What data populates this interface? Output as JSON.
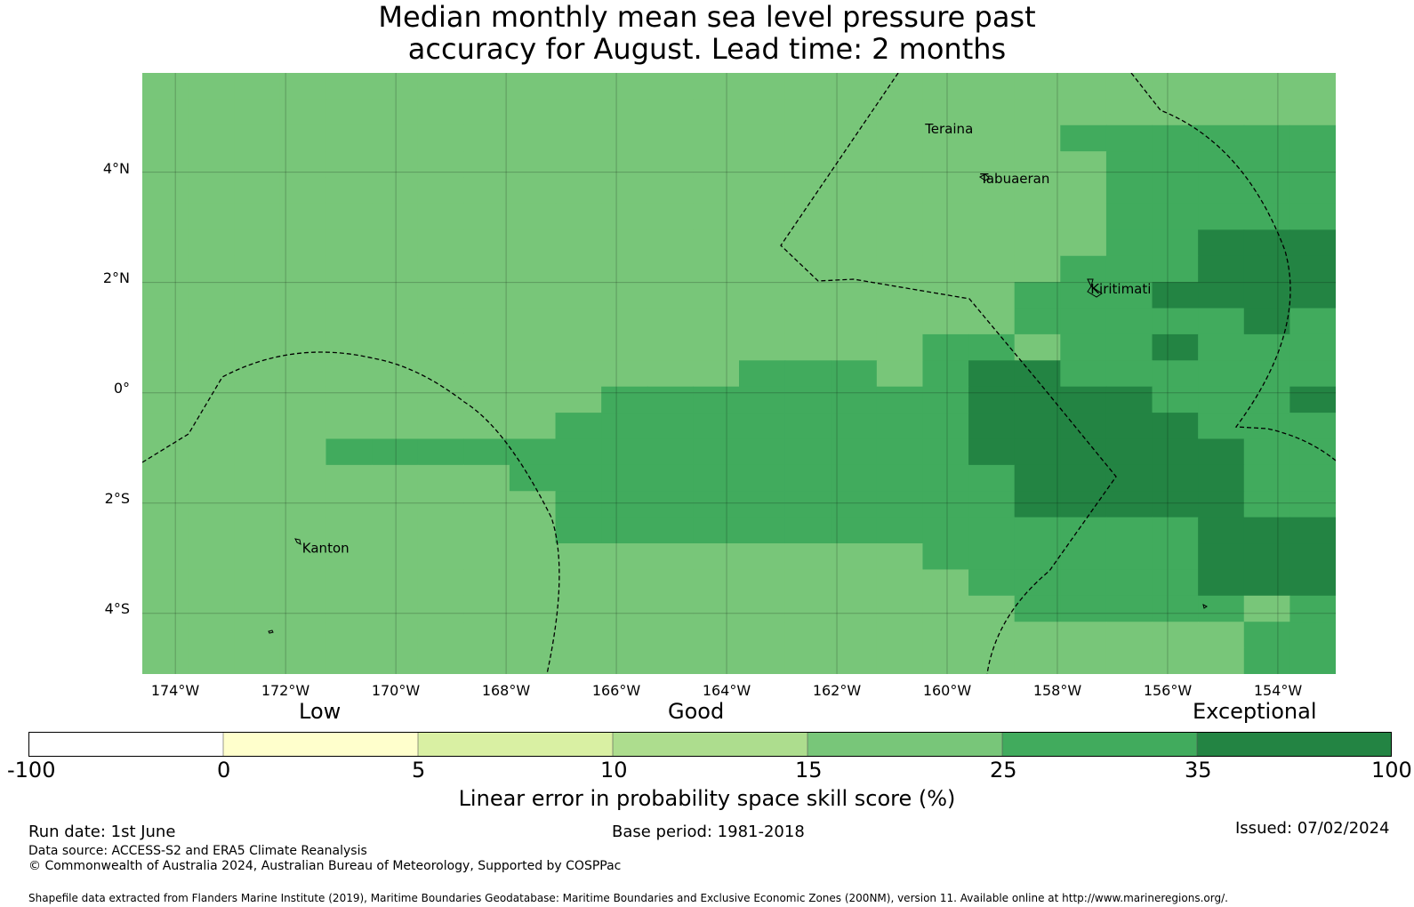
{
  "title": {
    "line1": "Median monthly mean sea level pressure past",
    "line2": "accuracy for August. Lead time: 2 months"
  },
  "map": {
    "lon_range": [
      -174.6,
      -152.95
    ],
    "lat_range": [
      -5.1,
      5.8
    ],
    "grid_step_deg": 0.833,
    "y_ticks": [
      "4°N",
      "2°N",
      "0°",
      "2°S",
      "4°S"
    ],
    "x_ticks": [
      "174°W",
      "172°W",
      "170°W",
      "168°W",
      "166°W",
      "164°W",
      "162°W",
      "160°W",
      "158°W",
      "156°W",
      "154°W"
    ],
    "places": [
      {
        "name": "Teraina",
        "lon": -160.4,
        "lat": 4.7
      },
      {
        "name": "Tabuaeran",
        "lon": -159.4,
        "lat": 3.8
      },
      {
        "name": "Kiritimati",
        "lon": -157.4,
        "lat": 1.8
      },
      {
        "name": "Kanton",
        "lon": -171.7,
        "lat": -2.9
      }
    ],
    "colors": {
      "bin_15_25": "#78c679",
      "bin_25_35": "#41ab5d",
      "bin_35_100": "#238443"
    },
    "skill_score_bins": [
      [
        0,
        0,
        0,
        0,
        0,
        0,
        0,
        0,
        0,
        0,
        0,
        0,
        0,
        0,
        0,
        0,
        0,
        0,
        0,
        0,
        0,
        0,
        0,
        0,
        0,
        0
      ],
      [
        0,
        0,
        0,
        0,
        0,
        0,
        0,
        0,
        0,
        0,
        0,
        0,
        0,
        0,
        0,
        0,
        0,
        0,
        0,
        0,
        0,
        0,
        0,
        0,
        0,
        0
      ],
      [
        0,
        0,
        0,
        0,
        0,
        0,
        0,
        0,
        0,
        0,
        0,
        0,
        0,
        0,
        0,
        0,
        0,
        0,
        0,
        0,
        1,
        1,
        1,
        1,
        1,
        1
      ],
      [
        0,
        0,
        0,
        0,
        0,
        0,
        0,
        0,
        0,
        0,
        0,
        0,
        0,
        0,
        0,
        0,
        0,
        0,
        0,
        0,
        0,
        1,
        1,
        1,
        1,
        1
      ],
      [
        0,
        0,
        0,
        0,
        0,
        0,
        0,
        0,
        0,
        0,
        0,
        0,
        0,
        0,
        0,
        0,
        0,
        0,
        0,
        0,
        0,
        1,
        1,
        1,
        1,
        1
      ],
      [
        0,
        0,
        0,
        0,
        0,
        0,
        0,
        0,
        0,
        0,
        0,
        0,
        0,
        0,
        0,
        0,
        0,
        0,
        0,
        0,
        0,
        1,
        1,
        1,
        1,
        1
      ],
      [
        0,
        0,
        0,
        0,
        0,
        0,
        0,
        0,
        0,
        0,
        0,
        0,
        0,
        0,
        0,
        0,
        0,
        0,
        0,
        0,
        0,
        1,
        1,
        2,
        2,
        2
      ],
      [
        0,
        0,
        0,
        0,
        0,
        0,
        0,
        0,
        0,
        0,
        0,
        0,
        0,
        0,
        0,
        0,
        0,
        0,
        0,
        0,
        1,
        1,
        1,
        2,
        2,
        2
      ],
      [
        0,
        0,
        0,
        0,
        0,
        0,
        0,
        0,
        0,
        0,
        0,
        0,
        0,
        0,
        0,
        0,
        0,
        0,
        0,
        1,
        1,
        1,
        2,
        2,
        2,
        2
      ],
      [
        0,
        0,
        0,
        0,
        0,
        0,
        0,
        0,
        0,
        0,
        0,
        0,
        0,
        0,
        0,
        0,
        0,
        0,
        0,
        1,
        1,
        1,
        1,
        1,
        2,
        1
      ],
      [
        0,
        0,
        0,
        0,
        0,
        0,
        0,
        0,
        0,
        0,
        0,
        0,
        0,
        0,
        0,
        0,
        0,
        1,
        1,
        0,
        1,
        1,
        2,
        1,
        1,
        1
      ],
      [
        0,
        0,
        0,
        0,
        0,
        0,
        0,
        0,
        0,
        0,
        0,
        0,
        0,
        1,
        1,
        1,
        0,
        1,
        2,
        2,
        1,
        1,
        1,
        1,
        1,
        1
      ],
      [
        0,
        0,
        0,
        0,
        0,
        0,
        0,
        0,
        0,
        0,
        1,
        1,
        1,
        1,
        1,
        1,
        1,
        1,
        2,
        2,
        2,
        2,
        1,
        1,
        1,
        2
      ],
      [
        0,
        0,
        0,
        0,
        0,
        0,
        0,
        0,
        0,
        1,
        1,
        1,
        1,
        1,
        1,
        1,
        1,
        1,
        2,
        2,
        2,
        2,
        2,
        1,
        1,
        1
      ],
      [
        0,
        0,
        0,
        0,
        1,
        1,
        1,
        1,
        1,
        1,
        1,
        1,
        1,
        1,
        1,
        1,
        1,
        1,
        2,
        2,
        2,
        2,
        2,
        2,
        1,
        1
      ],
      [
        0,
        0,
        0,
        0,
        0,
        0,
        0,
        0,
        1,
        1,
        1,
        1,
        1,
        1,
        1,
        1,
        1,
        1,
        1,
        2,
        2,
        2,
        2,
        2,
        1,
        1
      ],
      [
        0,
        0,
        0,
        0,
        0,
        0,
        0,
        0,
        0,
        1,
        1,
        1,
        1,
        1,
        1,
        1,
        1,
        1,
        1,
        2,
        2,
        2,
        2,
        2,
        1,
        1
      ],
      [
        0,
        0,
        0,
        0,
        0,
        0,
        0,
        0,
        0,
        1,
        1,
        1,
        1,
        1,
        1,
        1,
        1,
        1,
        1,
        1,
        1,
        1,
        1,
        2,
        2,
        2
      ],
      [
        0,
        0,
        0,
        0,
        0,
        0,
        0,
        0,
        0,
        0,
        0,
        0,
        0,
        0,
        0,
        0,
        0,
        1,
        1,
        1,
        1,
        1,
        1,
        2,
        2,
        2
      ],
      [
        0,
        0,
        0,
        0,
        0,
        0,
        0,
        0,
        0,
        0,
        0,
        0,
        0,
        0,
        0,
        0,
        0,
        0,
        1,
        1,
        1,
        1,
        1,
        2,
        2,
        2
      ],
      [
        0,
        0,
        0,
        0,
        0,
        0,
        0,
        0,
        0,
        0,
        0,
        0,
        0,
        0,
        0,
        0,
        0,
        0,
        0,
        1,
        1,
        1,
        1,
        1,
        0,
        1
      ],
      [
        0,
        0,
        0,
        0,
        0,
        0,
        0,
        0,
        0,
        0,
        0,
        0,
        0,
        0,
        0,
        0,
        0,
        0,
        0,
        0,
        0,
        0,
        0,
        0,
        1,
        1
      ],
      [
        0,
        0,
        0,
        0,
        0,
        0,
        0,
        0,
        0,
        0,
        0,
        0,
        0,
        0,
        0,
        0,
        0,
        0,
        0,
        0,
        0,
        0,
        0,
        0,
        1,
        1
      ]
    ]
  },
  "legend": {
    "labels_top": [
      "Low",
      "Good",
      "Exceptional"
    ],
    "tick_labels": [
      "-100",
      "0",
      "5",
      "10",
      "15",
      "25",
      "35",
      "100"
    ],
    "colors": [
      "#ffffff",
      "#ffffcc",
      "#d9f0a3",
      "#addd8e",
      "#78c679",
      "#41ab5d",
      "#238443"
    ],
    "title": "Linear error in probability space skill score (%)"
  },
  "footer": {
    "run_date": "Run date: 1st June",
    "base_period": "Base period: 1981-2018",
    "issued": "Issued: 07/02/2024",
    "data_source": "Data source: ACCESS-S2 and ERA5 Climate Reanalysis",
    "copyright": "© Commonwealth of Australia 2024, Australian Bureau of Meteorology, Supported by COSPPac",
    "shapefile": "Shapefile data extracted from Flanders Marine Institute (2019), Maritime Boundaries Geodatabase: Maritime Boundaries and Exclusive Economic Zones (200NM), version 11. Available online at http://www.marineregions.org/."
  }
}
